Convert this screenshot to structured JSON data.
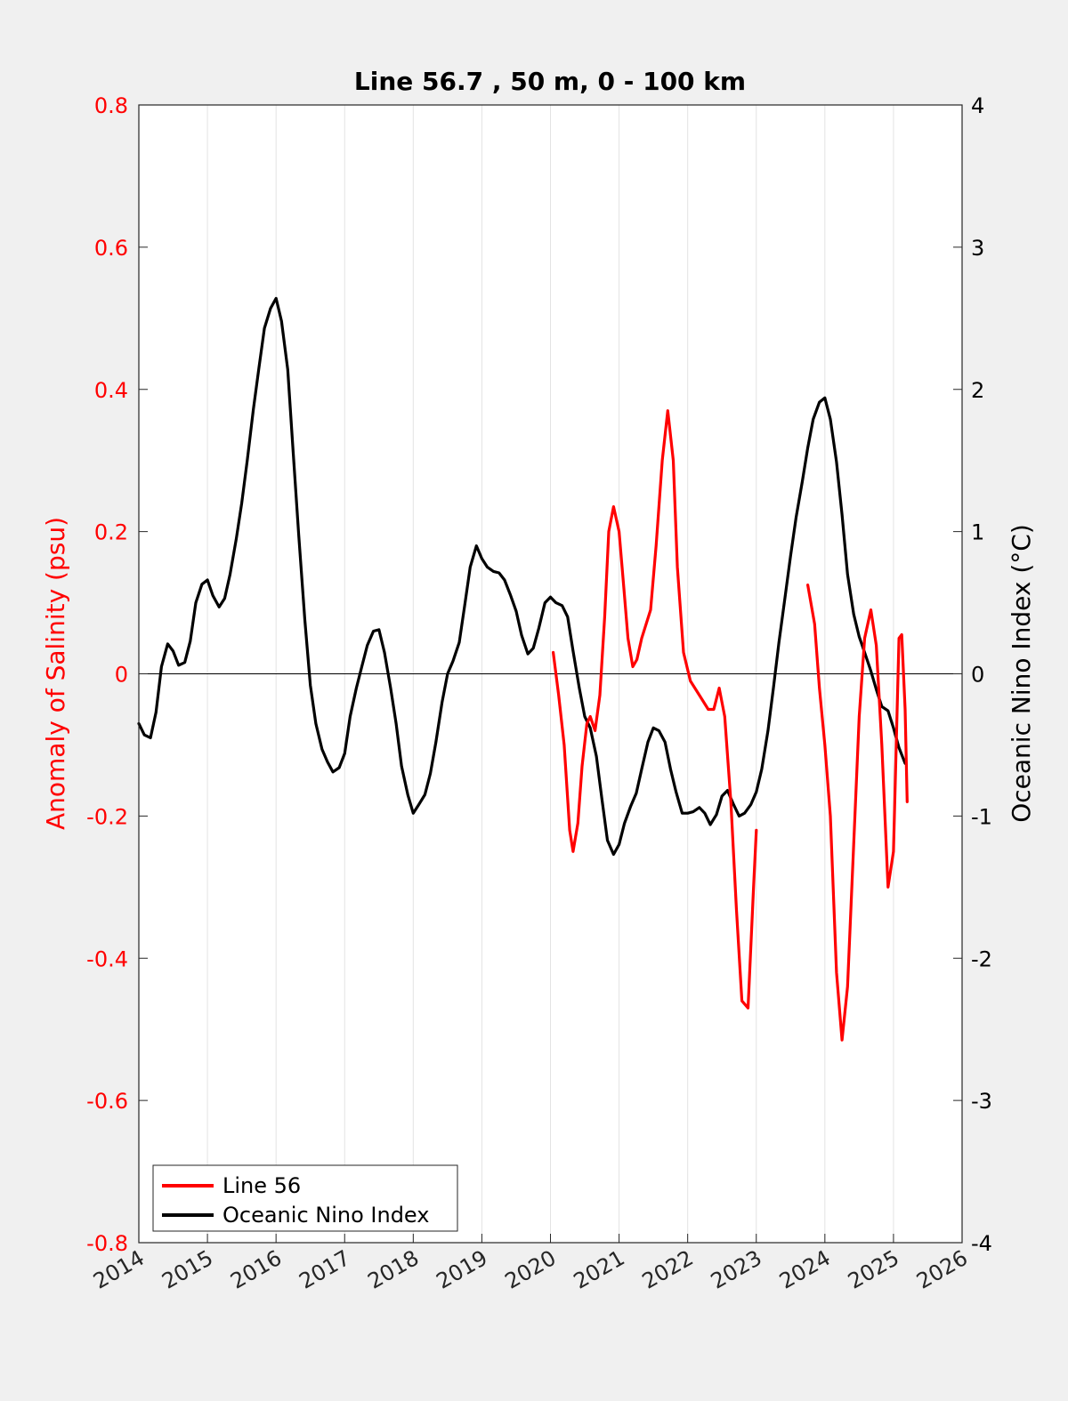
{
  "chart_data": {
    "type": "line",
    "title": "Line 56.7 , 50 m, 0 - 100 km",
    "ylabel_left": "Anomaly of Salinity (psu)",
    "ylabel_right": "Oceanic Nino Index (°C)",
    "xlim": [
      2014,
      2026
    ],
    "ylim_left": [
      -0.8,
      0.8
    ],
    "ylim_right": [
      -4,
      4
    ],
    "x_ticks": [
      "2014",
      "2015",
      "2016",
      "2017",
      "2018",
      "2019",
      "2020",
      "2021",
      "2022",
      "2023",
      "2024",
      "2025",
      "2026"
    ],
    "y_ticks_left": [
      "0.8",
      "0.6",
      "0.4",
      "0.2",
      "0",
      "-0.2",
      "-0.4",
      "-0.6",
      "-0.8"
    ],
    "y_ticks_right": [
      "4",
      "3",
      "2",
      "1",
      "0",
      "-1",
      "-2",
      "-3",
      "-4"
    ],
    "grid": "vertical",
    "legend": {
      "placement": "bottom-left",
      "entries": [
        "Line 56",
        "Oceanic Nino Index"
      ]
    },
    "colors": {
      "line56": "#ff0000",
      "oni": "#000000"
    },
    "series": [
      {
        "name": "Line 56",
        "axis": "left",
        "color": "#ff0000",
        "segments": [
          [
            [
              2020.04,
              0.03
            ],
            [
              2020.12,
              -0.03
            ],
            [
              2020.2,
              -0.1
            ],
            [
              2020.28,
              -0.22
            ],
            [
              2020.33,
              -0.25
            ],
            [
              2020.4,
              -0.21
            ],
            [
              2020.46,
              -0.13
            ],
            [
              2020.53,
              -0.07
            ],
            [
              2020.58,
              -0.06
            ],
            [
              2020.65,
              -0.08
            ],
            [
              2020.72,
              -0.03
            ],
            [
              2020.79,
              0.08
            ],
            [
              2020.85,
              0.2
            ],
            [
              2020.92,
              0.235
            ],
            [
              2021.0,
              0.2
            ],
            [
              2021.07,
              0.12
            ],
            [
              2021.13,
              0.05
            ],
            [
              2021.2,
              0.01
            ],
            [
              2021.26,
              0.02
            ],
            [
              2021.33,
              0.05
            ],
            [
              2021.46,
              0.09
            ],
            [
              2021.54,
              0.18
            ],
            [
              2021.63,
              0.3
            ],
            [
              2021.71,
              0.37
            ],
            [
              2021.79,
              0.3
            ],
            [
              2021.85,
              0.15
            ],
            [
              2021.94,
              0.03
            ],
            [
              2022.04,
              -0.01
            ],
            [
              2022.17,
              -0.03
            ],
            [
              2022.3,
              -0.05
            ],
            [
              2022.38,
              -0.05
            ],
            [
              2022.46,
              -0.02
            ],
            [
              2022.54,
              -0.06
            ],
            [
              2022.63,
              -0.18
            ],
            [
              2022.71,
              -0.33
            ],
            [
              2022.79,
              -0.46
            ],
            [
              2022.88,
              -0.47
            ],
            [
              2022.96,
              -0.3
            ],
            [
              2023.0,
              -0.22
            ]
          ],
          [
            [
              2023.75,
              0.125
            ],
            [
              2023.85,
              0.07
            ],
            [
              2023.92,
              -0.02
            ],
            [
              2024.0,
              -0.1
            ],
            [
              2024.08,
              -0.2
            ],
            [
              2024.17,
              -0.42
            ],
            [
              2024.25,
              -0.515
            ],
            [
              2024.33,
              -0.44
            ],
            [
              2024.42,
              -0.24
            ],
            [
              2024.5,
              -0.06
            ],
            [
              2024.58,
              0.05
            ],
            [
              2024.67,
              0.09
            ],
            [
              2024.75,
              0.04
            ],
            [
              2024.83,
              -0.1
            ],
            [
              2024.92,
              -0.3
            ],
            [
              2025.0,
              -0.25
            ],
            [
              2025.04,
              -0.1
            ],
            [
              2025.08,
              0.05
            ],
            [
              2025.12,
              0.055
            ],
            [
              2025.17,
              -0.05
            ],
            [
              2025.2,
              -0.18
            ]
          ]
        ]
      },
      {
        "name": "Oceanic Nino Index",
        "axis": "right",
        "color": "#000000",
        "segments": [
          [
            [
              2014.0,
              -0.35
            ],
            [
              2014.08,
              -0.43
            ],
            [
              2014.17,
              -0.45
            ],
            [
              2014.25,
              -0.27
            ],
            [
              2014.33,
              0.05
            ],
            [
              2014.42,
              0.21
            ],
            [
              2014.5,
              0.16
            ],
            [
              2014.58,
              0.06
            ],
            [
              2014.67,
              0.08
            ],
            [
              2014.75,
              0.23
            ],
            [
              2014.83,
              0.5
            ],
            [
              2014.92,
              0.63
            ],
            [
              2015.0,
              0.66
            ],
            [
              2015.08,
              0.55
            ],
            [
              2015.17,
              0.47
            ],
            [
              2015.25,
              0.53
            ],
            [
              2015.33,
              0.7
            ],
            [
              2015.42,
              0.95
            ],
            [
              2015.5,
              1.2
            ],
            [
              2015.58,
              1.5
            ],
            [
              2015.67,
              1.86
            ],
            [
              2015.75,
              2.15
            ],
            [
              2015.83,
              2.43
            ],
            [
              2015.92,
              2.57
            ],
            [
              2016.0,
              2.64
            ],
            [
              2016.08,
              2.48
            ],
            [
              2016.17,
              2.14
            ],
            [
              2016.25,
              1.56
            ],
            [
              2016.33,
              0.98
            ],
            [
              2016.42,
              0.38
            ],
            [
              2016.5,
              -0.08
            ],
            [
              2016.58,
              -0.35
            ],
            [
              2016.67,
              -0.53
            ],
            [
              2016.75,
              -0.62
            ],
            [
              2016.83,
              -0.69
            ],
            [
              2016.92,
              -0.66
            ],
            [
              2017.0,
              -0.56
            ],
            [
              2017.08,
              -0.3
            ],
            [
              2017.17,
              -0.1
            ],
            [
              2017.25,
              0.05
            ],
            [
              2017.33,
              0.2
            ],
            [
              2017.42,
              0.3
            ],
            [
              2017.5,
              0.31
            ],
            [
              2017.58,
              0.15
            ],
            [
              2017.67,
              -0.1
            ],
            [
              2017.75,
              -0.35
            ],
            [
              2017.83,
              -0.65
            ],
            [
              2017.92,
              -0.85
            ],
            [
              2018.0,
              -0.98
            ],
            [
              2018.08,
              -0.92
            ],
            [
              2018.17,
              -0.85
            ],
            [
              2018.25,
              -0.7
            ],
            [
              2018.33,
              -0.48
            ],
            [
              2018.42,
              -0.2
            ],
            [
              2018.5,
              0.0
            ],
            [
              2018.58,
              0.09
            ],
            [
              2018.67,
              0.22
            ],
            [
              2018.75,
              0.48
            ],
            [
              2018.83,
              0.75
            ],
            [
              2018.92,
              0.9
            ],
            [
              2019.0,
              0.81
            ],
            [
              2019.08,
              0.75
            ],
            [
              2019.17,
              0.72
            ],
            [
              2019.25,
              0.71
            ],
            [
              2019.33,
              0.66
            ],
            [
              2019.42,
              0.55
            ],
            [
              2019.5,
              0.44
            ],
            [
              2019.58,
              0.27
            ],
            [
              2019.67,
              0.14
            ],
            [
              2019.75,
              0.18
            ],
            [
              2019.83,
              0.32
            ],
            [
              2019.92,
              0.5
            ],
            [
              2020.0,
              0.54
            ],
            [
              2020.08,
              0.5
            ],
            [
              2020.17,
              0.48
            ],
            [
              2020.25,
              0.4
            ],
            [
              2020.33,
              0.16
            ],
            [
              2020.42,
              -0.1
            ],
            [
              2020.5,
              -0.3
            ],
            [
              2020.58,
              -0.38
            ],
            [
              2020.67,
              -0.58
            ],
            [
              2020.75,
              -0.88
            ],
            [
              2020.83,
              -1.17
            ],
            [
              2020.92,
              -1.27
            ],
            [
              2021.0,
              -1.2
            ],
            [
              2021.08,
              -1.05
            ],
            [
              2021.17,
              -0.93
            ],
            [
              2021.25,
              -0.84
            ],
            [
              2021.33,
              -0.67
            ],
            [
              2021.42,
              -0.48
            ],
            [
              2021.5,
              -0.38
            ],
            [
              2021.58,
              -0.4
            ],
            [
              2021.67,
              -0.48
            ],
            [
              2021.75,
              -0.67
            ],
            [
              2021.83,
              -0.83
            ],
            [
              2021.92,
              -0.98
            ],
            [
              2022.0,
              -0.98
            ],
            [
              2022.08,
              -0.97
            ],
            [
              2022.17,
              -0.94
            ],
            [
              2022.25,
              -0.98
            ],
            [
              2022.33,
              -1.06
            ],
            [
              2022.42,
              -0.99
            ],
            [
              2022.5,
              -0.86
            ],
            [
              2022.58,
              -0.82
            ],
            [
              2022.67,
              -0.92
            ],
            [
              2022.75,
              -1.0
            ],
            [
              2022.83,
              -0.98
            ],
            [
              2022.92,
              -0.92
            ],
            [
              2023.0,
              -0.83
            ],
            [
              2023.08,
              -0.67
            ],
            [
              2023.17,
              -0.4
            ],
            [
              2023.25,
              -0.1
            ],
            [
              2023.33,
              0.22
            ],
            [
              2023.42,
              0.54
            ],
            [
              2023.5,
              0.83
            ],
            [
              2023.58,
              1.1
            ],
            [
              2023.67,
              1.35
            ],
            [
              2023.75,
              1.59
            ],
            [
              2023.83,
              1.79
            ],
            [
              2023.92,
              1.91
            ],
            [
              2024.0,
              1.94
            ],
            [
              2024.08,
              1.79
            ],
            [
              2024.17,
              1.49
            ],
            [
              2024.25,
              1.12
            ],
            [
              2024.33,
              0.7
            ],
            [
              2024.42,
              0.42
            ],
            [
              2024.5,
              0.26
            ],
            [
              2024.58,
              0.15
            ],
            [
              2024.67,
              0.02
            ],
            [
              2024.75,
              -0.11
            ],
            [
              2024.83,
              -0.23
            ],
            [
              2024.92,
              -0.26
            ],
            [
              2025.0,
              -0.38
            ],
            [
              2025.08,
              -0.52
            ],
            [
              2025.17,
              -0.63
            ]
          ]
        ]
      }
    ]
  }
}
